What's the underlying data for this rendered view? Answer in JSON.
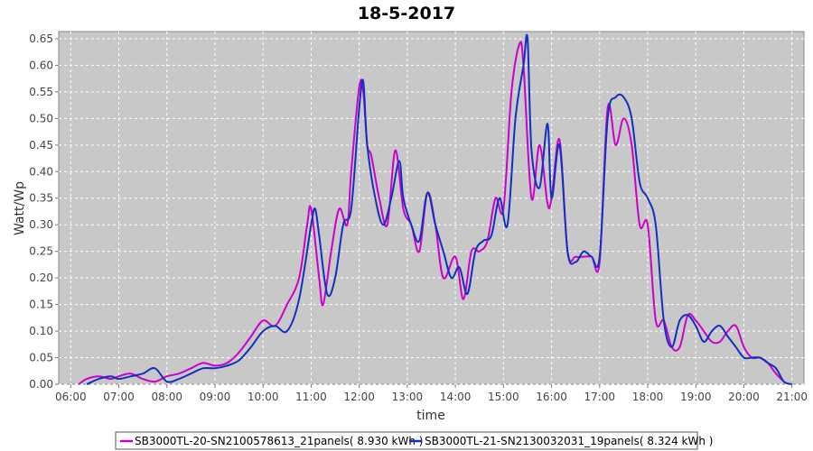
{
  "chart_data": {
    "type": "line",
    "title": "18-5-2017",
    "xlabel": "time",
    "ylabel": "Watt/Wp",
    "xlim": [
      "06:00",
      "21:00"
    ],
    "x_ticks": [
      "06:00",
      "07:00",
      "08:00",
      "09:00",
      "10:00",
      "11:00",
      "12:00",
      "13:00",
      "14:00",
      "15:00",
      "16:00",
      "17:00",
      "18:00",
      "19:00",
      "20:00",
      "21:00"
    ],
    "ylim": [
      0,
      0.65
    ],
    "y_ticks": [
      "0.00",
      "0.05",
      "0.10",
      "0.15",
      "0.20",
      "0.25",
      "0.30",
      "0.35",
      "0.40",
      "0.45",
      "0.50",
      "0.55",
      "0.60",
      "0.65"
    ],
    "grid": true,
    "legend_position": "bottom",
    "series": [
      {
        "name": "SB3000TL-20-SN2100578613_21panels( 8.930 kWh )",
        "color": "#cc00cc",
        "x": [
          "06:10",
          "06:20",
          "06:35",
          "06:50",
          "07:00",
          "07:15",
          "07:30",
          "07:45",
          "08:00",
          "08:15",
          "08:30",
          "08:45",
          "09:00",
          "09:15",
          "09:30",
          "09:45",
          "10:00",
          "10:15",
          "10:30",
          "10:45",
          "10:55",
          "11:00",
          "11:10",
          "11:15",
          "11:25",
          "11:35",
          "11:45",
          "11:50",
          "12:00",
          "12:05",
          "12:10",
          "12:15",
          "12:25",
          "12:35",
          "12:45",
          "12:55",
          "13:05",
          "13:15",
          "13:25",
          "13:35",
          "13:45",
          "14:00",
          "14:10",
          "14:20",
          "14:30",
          "14:40",
          "14:50",
          "15:00",
          "15:10",
          "15:20",
          "15:25",
          "15:35",
          "15:45",
          "15:55",
          "16:00",
          "16:10",
          "16:20",
          "16:30",
          "16:40",
          "16:50",
          "17:00",
          "17:10",
          "17:20",
          "17:30",
          "17:40",
          "17:50",
          "18:00",
          "18:10",
          "18:20",
          "18:30",
          "18:40",
          "18:50",
          "19:00",
          "19:10",
          "19:20",
          "19:30",
          "19:40",
          "19:50",
          "20:00",
          "20:10",
          "20:20",
          "20:30",
          "20:40",
          "20:50"
        ],
        "values": [
          0.0,
          0.01,
          0.015,
          0.01,
          0.015,
          0.02,
          0.01,
          0.005,
          0.015,
          0.02,
          0.03,
          0.04,
          0.035,
          0.04,
          0.06,
          0.09,
          0.12,
          0.11,
          0.15,
          0.2,
          0.3,
          0.33,
          0.2,
          0.15,
          0.25,
          0.33,
          0.3,
          0.4,
          0.56,
          0.55,
          0.45,
          0.43,
          0.35,
          0.3,
          0.44,
          0.33,
          0.3,
          0.25,
          0.36,
          0.3,
          0.2,
          0.24,
          0.16,
          0.25,
          0.25,
          0.27,
          0.35,
          0.33,
          0.55,
          0.64,
          0.6,
          0.35,
          0.45,
          0.34,
          0.35,
          0.46,
          0.25,
          0.24,
          0.24,
          0.24,
          0.23,
          0.52,
          0.45,
          0.5,
          0.45,
          0.3,
          0.3,
          0.12,
          0.12,
          0.07,
          0.07,
          0.13,
          0.12,
          0.1,
          0.08,
          0.08,
          0.1,
          0.11,
          0.07,
          0.05,
          0.05,
          0.04,
          0.02,
          0.005
        ]
      },
      {
        "name": "SB3000TL-21-SN2130032031_19panels( 8.324 kWh )",
        "color": "#1030c0",
        "x": [
          "06:20",
          "06:35",
          "06:50",
          "07:00",
          "07:15",
          "07:30",
          "07:45",
          "08:00",
          "08:15",
          "08:30",
          "08:45",
          "09:00",
          "09:15",
          "09:30",
          "09:45",
          "10:00",
          "10:15",
          "10:30",
          "10:45",
          "11:00",
          "11:05",
          "11:10",
          "11:20",
          "11:30",
          "11:40",
          "11:50",
          "12:00",
          "12:05",
          "12:10",
          "12:20",
          "12:30",
          "12:40",
          "12:50",
          "12:55",
          "13:05",
          "13:15",
          "13:25",
          "13:35",
          "13:45",
          "13:55",
          "14:05",
          "14:15",
          "14:25",
          "14:35",
          "14:45",
          "14:55",
          "15:05",
          "15:15",
          "15:25",
          "15:30",
          "15:35",
          "15:45",
          "15:55",
          "16:00",
          "16:10",
          "16:20",
          "16:30",
          "16:40",
          "16:50",
          "17:00",
          "17:10",
          "17:20",
          "17:30",
          "17:40",
          "17:50",
          "18:00",
          "18:10",
          "18:20",
          "18:30",
          "18:40",
          "18:50",
          "19:00",
          "19:10",
          "19:20",
          "19:30",
          "19:40",
          "19:50",
          "20:00",
          "20:10",
          "20:20",
          "20:30",
          "20:40",
          "20:50",
          "21:00"
        ],
        "values": [
          0.0,
          0.01,
          0.015,
          0.01,
          0.015,
          0.02,
          0.03,
          0.005,
          0.01,
          0.02,
          0.03,
          0.03,
          0.035,
          0.045,
          0.07,
          0.1,
          0.11,
          0.1,
          0.16,
          0.3,
          0.33,
          0.28,
          0.17,
          0.2,
          0.3,
          0.33,
          0.52,
          0.57,
          0.45,
          0.35,
          0.3,
          0.35,
          0.42,
          0.35,
          0.3,
          0.27,
          0.36,
          0.3,
          0.25,
          0.2,
          0.22,
          0.17,
          0.25,
          0.27,
          0.28,
          0.35,
          0.3,
          0.5,
          0.6,
          0.65,
          0.44,
          0.37,
          0.49,
          0.35,
          0.45,
          0.25,
          0.23,
          0.25,
          0.24,
          0.24,
          0.5,
          0.54,
          0.54,
          0.5,
          0.38,
          0.35,
          0.3,
          0.12,
          0.07,
          0.12,
          0.13,
          0.11,
          0.08,
          0.1,
          0.11,
          0.09,
          0.07,
          0.05,
          0.05,
          0.05,
          0.04,
          0.03,
          0.005,
          0.0
        ]
      }
    ]
  }
}
